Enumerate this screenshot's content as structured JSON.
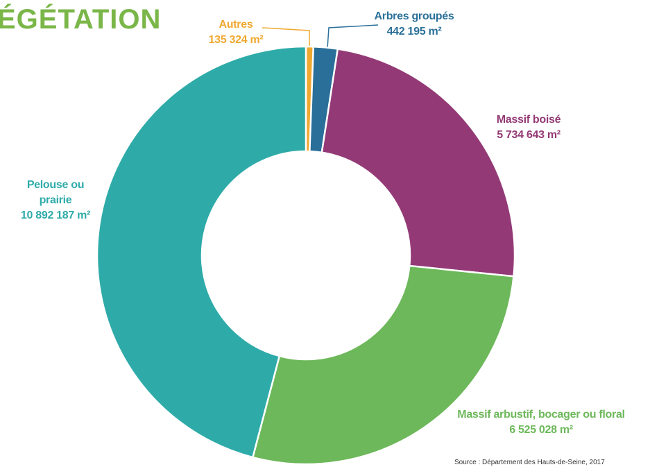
{
  "chart_data": {
    "type": "donut",
    "title": "ÉGÉTATION",
    "categories": [
      "Autres",
      "Arbres groupés",
      "Massif boisé",
      "Massif arbustif, bocager ou floral",
      "Pelouse ou prairie"
    ],
    "values": [
      135324,
      442195,
      5734643,
      6525028,
      10892187
    ],
    "value_labels": [
      "135 324 m²",
      "442 195 m²",
      "5 734 643 m²",
      "6 525 028 m²",
      "10 892 187 m²"
    ],
    "colors": [
      "#f0a830",
      "#2a6f99",
      "#933a76",
      "#6db85a",
      "#2eaba9"
    ],
    "source": "Source : Département des Hauts-de-Seine, 2017"
  }
}
